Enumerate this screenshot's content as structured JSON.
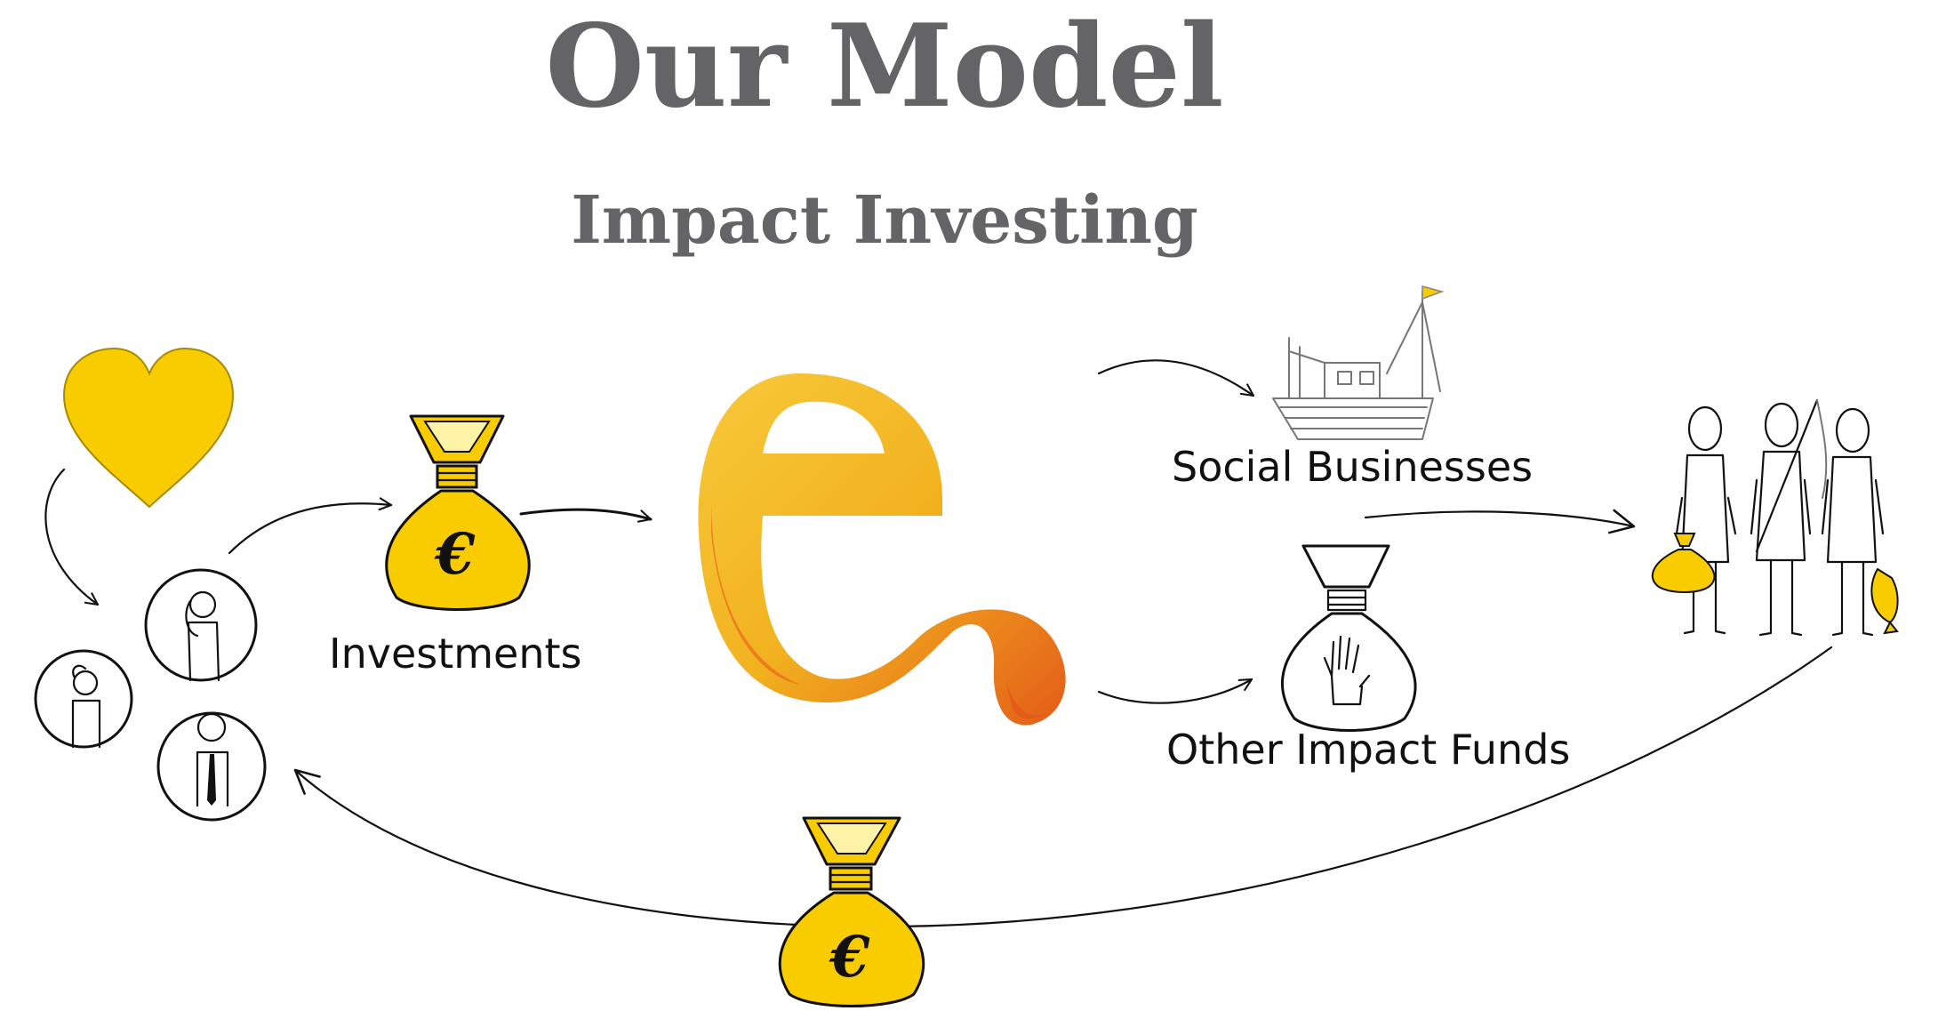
{
  "title": "Our Model",
  "subtitle": "Impact Investing",
  "labels": {
    "investments": "Investments",
    "social_businesses": "Social Businesses",
    "other_impact_funds": "Other Impact Funds"
  },
  "bag_symbol": "€",
  "colors": {
    "title": "#646466",
    "yellow": "#f9cc00",
    "orange": "#e8661e",
    "ink": "#111111"
  },
  "icons": [
    "heart-icon",
    "investors-icon",
    "money-bag-icon",
    "logo-e-icon",
    "fishing-boat-icon",
    "impact-fund-bag-icon",
    "fishermen-icon"
  ]
}
